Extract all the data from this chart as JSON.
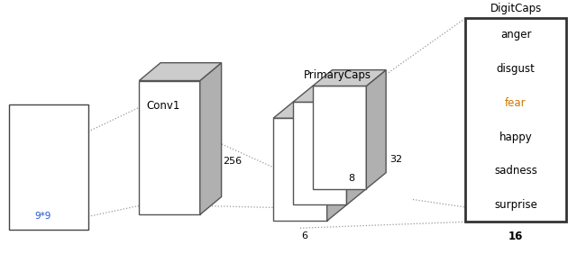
{
  "fig_width": 6.4,
  "fig_height": 2.82,
  "dpi": 100,
  "bg_color": "#ffffff",
  "face_label": "9*9",
  "conv1_label": "Conv1",
  "conv1_dim": "256",
  "primarycaps_label": "PrimaryCaps",
  "primarycaps_dim_front": "8",
  "primarycaps_dim_side": "32",
  "primarycaps_dim_bottom": "6",
  "digitcaps_label": "DigitCaps",
  "digitcaps_dim": "16",
  "emotions": [
    "anger",
    "disgust",
    "fear",
    "happy",
    "sadness",
    "surprise"
  ],
  "emotion_colors": [
    "#000000",
    "#000000",
    "#cc7700",
    "#000000",
    "#000000",
    "#000000"
  ],
  "cube_face_color": "#ffffff",
  "cube_top_color": "#cccccc",
  "cube_side_color": "#b0b0b0",
  "cube_edge_color": "#555555",
  "box_edge_color": "#333333",
  "dotted_line_color": "#999999",
  "text_color": "#000000"
}
